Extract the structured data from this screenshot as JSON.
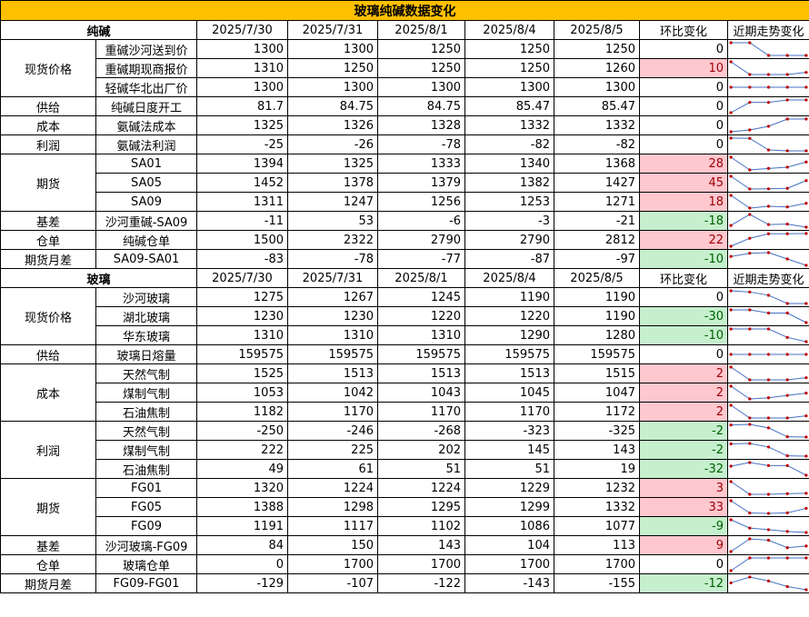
{
  "title": "玻璃纯碱数据变化",
  "sections": [
    {
      "name": "纯碱",
      "dates": [
        "2025/7/30",
        "2025/7/31",
        "2025/8/1",
        "2025/8/4",
        "2025/8/5"
      ],
      "change_label": "环比变化",
      "trend_label": "近期走势变化",
      "groups": [
        {
          "category": "现货价格",
          "rows": [
            {
              "item": "重碱沙河送到价",
              "values": [
                1300,
                1300,
                1250,
                1250,
                1250
              ],
              "change": 0
            },
            {
              "item": "重碱期现商报价",
              "values": [
                1310,
                1250,
                1250,
                1250,
                1260
              ],
              "change": 10
            },
            {
              "item": "轻碱华北出厂价",
              "values": [
                1300,
                1300,
                1300,
                1300,
                1300
              ],
              "change": 0
            }
          ]
        },
        {
          "category": "供给",
          "rows": [
            {
              "item": "纯碱日度开工",
              "values": [
                81.7,
                84.75,
                84.75,
                85.47,
                85.47
              ],
              "change": 0
            }
          ]
        },
        {
          "category": "成本",
          "rows": [
            {
              "item": "氨碱法成本",
              "values": [
                1325,
                1326,
                1328,
                1332,
                1332
              ],
              "change": 0
            }
          ]
        },
        {
          "category": "利润",
          "rows": [
            {
              "item": "氨碱法利润",
              "values": [
                -25,
                -26,
                -78,
                -82,
                -82
              ],
              "change": 0
            }
          ]
        },
        {
          "category": "期货",
          "rows": [
            {
              "item": "SA01",
              "values": [
                1394,
                1325,
                1333,
                1340,
                1368
              ],
              "change": 28
            },
            {
              "item": "SA05",
              "values": [
                1452,
                1378,
                1379,
                1382,
                1427
              ],
              "change": 45
            },
            {
              "item": "SA09",
              "values": [
                1311,
                1247,
                1256,
                1253,
                1271
              ],
              "change": 18
            }
          ]
        },
        {
          "category": "基差",
          "rows": [
            {
              "item": "沙河重碱-SA09",
              "values": [
                -11,
                53,
                -6,
                -3,
                -21
              ],
              "change": -18
            }
          ]
        },
        {
          "category": "仓单",
          "rows": [
            {
              "item": "纯碱仓单",
              "values": [
                1500,
                2322,
                2790,
                2790,
                2812
              ],
              "change": 22
            }
          ]
        },
        {
          "category": "期货月差",
          "rows": [
            {
              "item": "SA09-SA01",
              "values": [
                -83,
                -78,
                -77,
                -87,
                -97
              ],
              "change": -10
            }
          ]
        }
      ]
    },
    {
      "name": "玻璃",
      "dates": [
        "2025/7/30",
        "2025/7/31",
        "2025/8/1",
        "2025/8/4",
        "2025/8/5"
      ],
      "change_label": "环比变化",
      "trend_label": "近期走势变化",
      "groups": [
        {
          "category": "现货价格",
          "rows": [
            {
              "item": "沙河玻璃",
              "values": [
                1275,
                1267,
                1245,
                1190,
                1190
              ],
              "change": 0
            },
            {
              "item": "湖北玻璃",
              "values": [
                1230,
                1230,
                1220,
                1220,
                1190
              ],
              "change": -30
            },
            {
              "item": "华东玻璃",
              "values": [
                1310,
                1310,
                1310,
                1290,
                1280
              ],
              "change": -10
            }
          ]
        },
        {
          "category": "供给",
          "rows": [
            {
              "item": "玻璃日熔量",
              "values": [
                159575,
                159575,
                159575,
                159575,
                159575
              ],
              "change": 0
            }
          ]
        },
        {
          "category": "成本",
          "rows": [
            {
              "item": "天然气制",
              "values": [
                1525,
                1513,
                1513,
                1513,
                1515
              ],
              "change": 2
            },
            {
              "item": "煤制气制",
              "values": [
                1053,
                1042,
                1043,
                1045,
                1047
              ],
              "change": 2
            },
            {
              "item": "石油焦制",
              "values": [
                1182,
                1170,
                1170,
                1170,
                1172
              ],
              "change": 2
            }
          ]
        },
        {
          "category": "利润",
          "rows": [
            {
              "item": "天然气制",
              "values": [
                -250,
                -246,
                -268,
                -323,
                -325
              ],
              "change": -2
            },
            {
              "item": "煤制气制",
              "values": [
                222,
                225,
                202,
                145,
                143
              ],
              "change": -2
            },
            {
              "item": "石油焦制",
              "values": [
                49,
                61,
                51,
                51,
                19
              ],
              "change": -32
            }
          ]
        },
        {
          "category": "期货",
          "rows": [
            {
              "item": "FG01",
              "values": [
                1320,
                1224,
                1224,
                1229,
                1232
              ],
              "change": 3
            },
            {
              "item": "FG05",
              "values": [
                1388,
                1298,
                1295,
                1299,
                1332
              ],
              "change": 33
            },
            {
              "item": "FG09",
              "values": [
                1191,
                1117,
                1102,
                1086,
                1077
              ],
              "change": -9
            }
          ]
        },
        {
          "category": "基差",
          "rows": [
            {
              "item": "沙河玻璃-FG09",
              "values": [
                84,
                150,
                143,
                104,
                113
              ],
              "change": 9
            }
          ]
        },
        {
          "category": "仓单",
          "rows": [
            {
              "item": "玻璃仓单",
              "values": [
                0,
                1700,
                1700,
                1700,
                1700
              ],
              "change": 0
            }
          ]
        },
        {
          "category": "期货月差",
          "rows": [
            {
              "item": "FG09-FG01",
              "values": [
                -129,
                -107,
                -122,
                -143,
                -155
              ],
              "change": -12
            }
          ]
        }
      ]
    }
  ],
  "colors": {
    "title_bg": "#ffc000",
    "up_bg": "#ffc7ce",
    "down_bg": "#c6efce",
    "spark_line": "#4472c4",
    "spark_marker": "#c00000"
  }
}
